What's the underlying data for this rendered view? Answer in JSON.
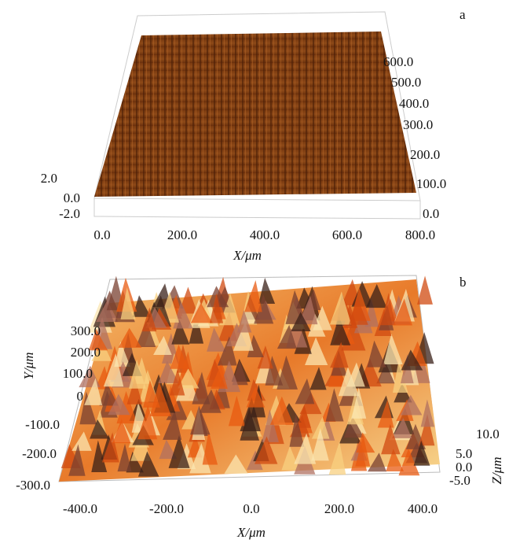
{
  "panel_a": {
    "label": "a",
    "x_title": "X/μm",
    "x_ticks": [
      "0.0",
      "200.0",
      "400.0",
      "600.0",
      "800.0"
    ],
    "y_ticks": [
      "600.0",
      "500.0",
      "400.0",
      "300.0",
      "200.0",
      "100.0",
      "0.0"
    ],
    "z_ticks": [
      "2.0",
      "0.0",
      "-2.0"
    ]
  },
  "panel_b": {
    "label": "b",
    "x_title": "X/μm",
    "y_title": "Y/μm",
    "z_title": "Z/μm",
    "x_ticks": [
      "-400.0",
      "-200.0",
      "0.0",
      "200.0",
      "400.0"
    ],
    "y_ticks": [
      "300.0",
      "200.0",
      "100.0",
      "0",
      "-100.0",
      "-200.0",
      "-300.0"
    ],
    "z_ticks": [
      "10.0",
      "5.0",
      "0.0",
      "-5.0"
    ]
  }
}
